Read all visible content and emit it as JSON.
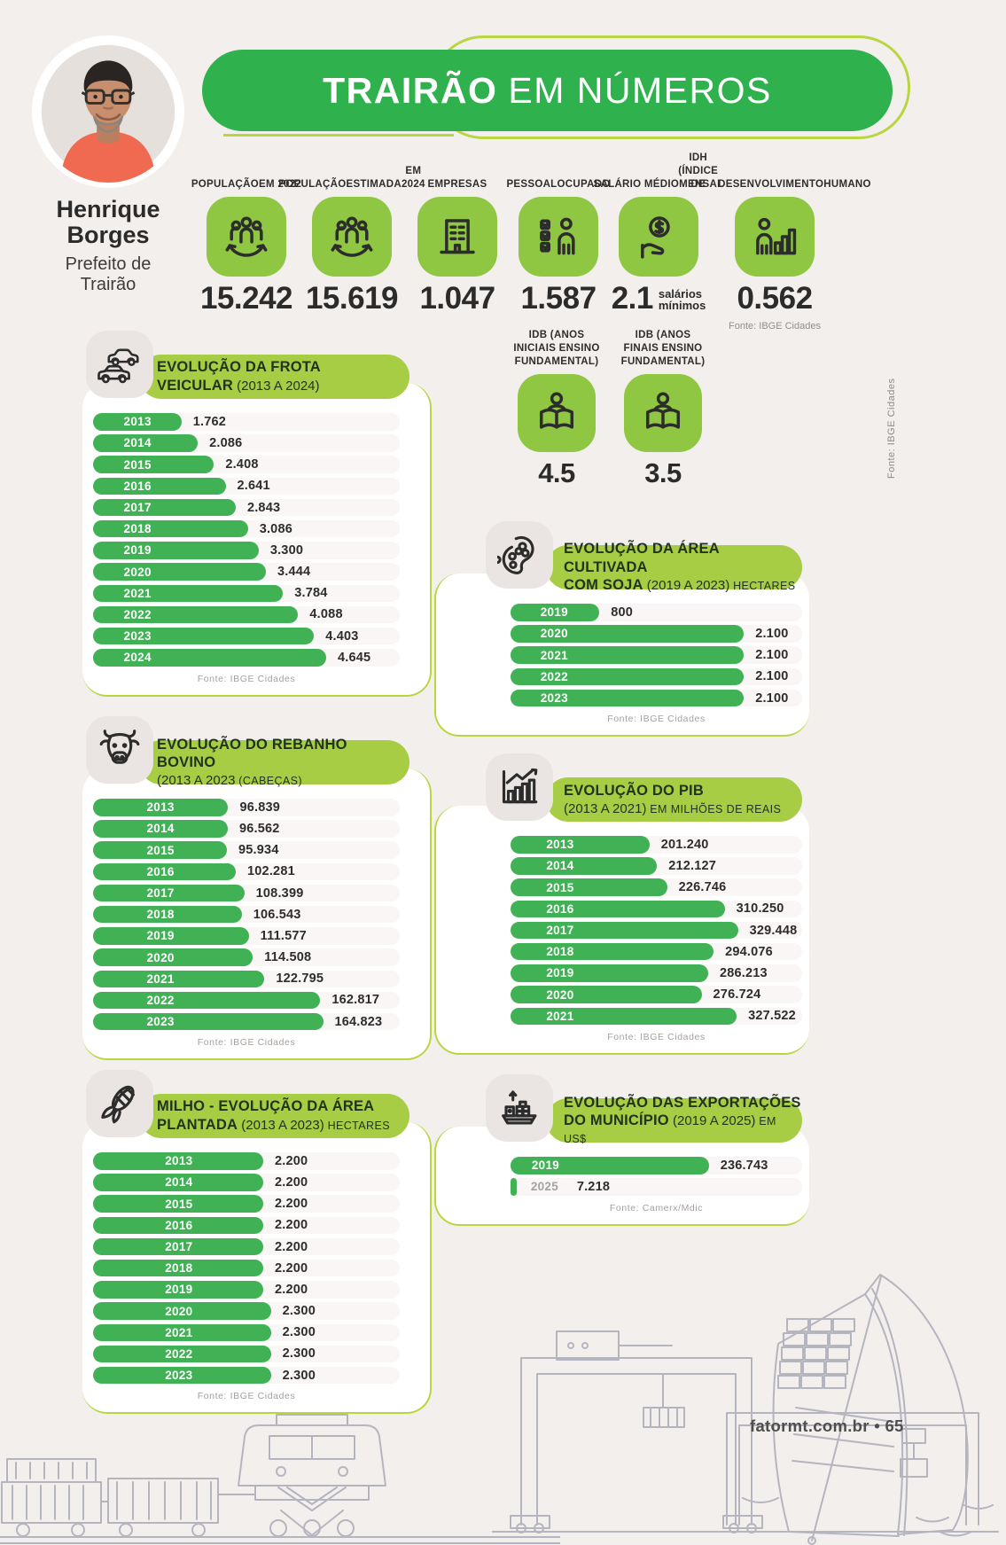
{
  "header": {
    "title_bold": "TRAIRÃO",
    "title_light": "EM NÚMEROS"
  },
  "official": {
    "name_line1": "Henrique",
    "name_line2": "Borges",
    "role_line1": "Prefeito de",
    "role_line2": "Trairão"
  },
  "stats": [
    {
      "label_lines": [
        "POPULAÇÃO",
        "EM 2022"
      ],
      "icon": "population-icon",
      "value": "15.242"
    },
    {
      "label_lines": [
        "POPULAÇÃO",
        "ESTIMADA",
        "EM 2024"
      ],
      "icon": "population-icon",
      "value": "15.619"
    },
    {
      "label_lines": [
        "EMPRESAS"
      ],
      "icon": "building-icon",
      "value": "1.047"
    },
    {
      "label_lines": [
        "PESSOAL",
        "OCUPADO"
      ],
      "icon": "worker-checklist-icon",
      "value": "1.587"
    },
    {
      "label_lines": [
        "SALÁRIO MÉDIO",
        "MENSAL"
      ],
      "icon": "salary-hand-icon",
      "value": "2.1",
      "suffix_lines": [
        "salários",
        "mínimos"
      ]
    },
    {
      "label_lines": [
        "IDH (ÍNDICE DE",
        "DESENVOLVIMENTO",
        "HUMANO"
      ],
      "icon": "idh-person-chart-icon",
      "value": "0.562",
      "fonte": "Fonte: IBGE Cidades"
    }
  ],
  "idb": [
    {
      "label_lines": [
        "IDB (ANOS",
        "INICIAIS ENSINO",
        "FUNDAMENTAL)"
      ],
      "icon": "reader-book-icon",
      "value": "4.5"
    },
    {
      "label_lines": [
        "IDB (ANOS",
        "FINAIS ENSINO",
        "FUNDAMENTAL)"
      ],
      "icon": "reader-book-icon",
      "value": "3.5"
    }
  ],
  "side_note": "Fonte: IBGE Cidades",
  "footer": {
    "site": "fatormt.com.br",
    "separator": "•",
    "page_number": "65"
  },
  "colors": {
    "banner_green": "#2fb14d",
    "bar_green": "#41b156",
    "pill_green": "#a6cd44",
    "outline_green": "#b9d642",
    "tile_green": "#8fc642",
    "tile_gray": "#eae5e2",
    "page_bg": "#f3efed",
    "text_dark": "#2d2d2d",
    "fonte_gray": "#a5a09d"
  },
  "chart_data": [
    {
      "id": "frota",
      "type": "bar",
      "orientation": "horizontal",
      "icon": "car-icon",
      "title_lines": [
        [
          [
            "b",
            "EVOLUÇÃO DA FROTA"
          ]
        ],
        [
          [
            "b",
            "VEICULAR"
          ],
          [
            "r",
            " (2013 A 2024)"
          ]
        ]
      ],
      "title": "EVOLUÇÃO DA FROTA VEICULAR (2013 A 2024)",
      "categories": [
        "2013",
        "2014",
        "2015",
        "2016",
        "2017",
        "2018",
        "2019",
        "2020",
        "2021",
        "2022",
        "2023",
        "2024"
      ],
      "values": [
        1762,
        2086,
        2408,
        2641,
        2843,
        3086,
        3300,
        3444,
        3784,
        4088,
        4403,
        4645
      ],
      "display": [
        "1.762",
        "2.086",
        "2.408",
        "2.641",
        "2.843",
        "3.086",
        "3.300",
        "3.444",
        "3.784",
        "4.088",
        "4.403",
        "4.645"
      ],
      "fonte": "Fonte: IBGE Cidades"
    },
    {
      "id": "soja",
      "type": "bar",
      "orientation": "horizontal",
      "icon": "soy-icon",
      "title_lines": [
        [
          [
            "b",
            "EVOLUÇÃO DA ÁREA CULTIVADA"
          ]
        ],
        [
          [
            "b",
            "COM SOJA"
          ],
          [
            "r",
            " (2019 A 2023)"
          ],
          [
            "s",
            " HECTARES"
          ]
        ]
      ],
      "title": "EVOLUÇÃO DA ÁREA CULTIVADA COM SOJA (2019 A 2023) HECTARES",
      "categories": [
        "2019",
        "2020",
        "2021",
        "2022",
        "2023"
      ],
      "values": [
        800,
        2100,
        2100,
        2100,
        2100
      ],
      "display": [
        "800",
        "2.100",
        "2.100",
        "2.100",
        "2.100"
      ],
      "fonte": "Fonte: IBGE Cidades"
    },
    {
      "id": "rebanho",
      "type": "bar",
      "orientation": "horizontal",
      "icon": "cow-icon",
      "title_lines": [
        [
          [
            "b",
            "EVOLUÇÃO DO REBANHO BOVINO"
          ]
        ],
        [
          [
            "r",
            "(2013 A 2023"
          ],
          [
            "s",
            " (CABEÇAS)"
          ]
        ]
      ],
      "title": "EVOLUÇÃO DO REBANHO BOVINO (2013 A 2023) CABEÇAS",
      "categories": [
        "2013",
        "2014",
        "2015",
        "2016",
        "2017",
        "2018",
        "2019",
        "2020",
        "2021",
        "2022",
        "2023"
      ],
      "values": [
        96839,
        96562,
        95934,
        102281,
        108399,
        106543,
        111577,
        114508,
        122795,
        162817,
        164823
      ],
      "display": [
        "96.839",
        "96.562",
        "95.934",
        "102.281",
        "108.399",
        "106.543",
        "111.577",
        "114.508",
        "122.795",
        "162.817",
        "164.823"
      ],
      "fonte": "Fonte: IBGE Cidades"
    },
    {
      "id": "pib",
      "type": "bar",
      "orientation": "horizontal",
      "icon": "chart-growth-icon",
      "title_lines": [
        [
          [
            "b",
            "EVOLUÇÃO DO PIB"
          ]
        ],
        [
          [
            "r",
            "(2013 A 2021)"
          ],
          [
            "s",
            " EM MILHÕES DE REAIS"
          ]
        ]
      ],
      "title": "EVOLUÇÃO DO PIB (2013 A 2021) EM MILHÕES DE REAIS",
      "categories": [
        "2013",
        "2014",
        "2015",
        "2016",
        "2017",
        "2018",
        "2019",
        "2020",
        "2021"
      ],
      "values": [
        201240,
        212127,
        226746,
        310250,
        329448,
        294076,
        286213,
        276724,
        327522
      ],
      "display": [
        "201.240",
        "212.127",
        "226.746",
        "310.250",
        "329.448",
        "294.076",
        "286.213",
        "276.724",
        "327.522"
      ],
      "fonte": "Fonte: IBGE Cidades"
    },
    {
      "id": "milho",
      "type": "bar",
      "orientation": "horizontal",
      "icon": "corn-icon",
      "title_lines": [
        [
          [
            "b",
            "MILHO - EVOLUÇÃO DA ÁREA"
          ]
        ],
        [
          [
            "b",
            "PLANTADA"
          ],
          [
            "r",
            " (2013 A 2023)"
          ],
          [
            "s",
            " HECTARES"
          ]
        ]
      ],
      "title": "MILHO - EVOLUÇÃO DA ÁREA PLANTADA (2013 A 2023) HECTARES",
      "categories": [
        "2013",
        "2014",
        "2015",
        "2016",
        "2017",
        "2018",
        "2019",
        "2020",
        "2021",
        "2022",
        "2023"
      ],
      "values": [
        2200,
        2200,
        2200,
        2200,
        2200,
        2200,
        2200,
        2300,
        2300,
        2300,
        2300
      ],
      "display": [
        "2.200",
        "2.200",
        "2.200",
        "2.200",
        "2.200",
        "2.200",
        "2.200",
        "2.300",
        "2.300",
        "2.300",
        "2.300"
      ],
      "fonte": "Fonte: IBGE Cidades"
    },
    {
      "id": "export",
      "type": "bar",
      "orientation": "horizontal",
      "icon": "ship-export-icon",
      "title_lines": [
        [
          [
            "b",
            "EVOLUÇÃO DAS EXPORTAÇÕES"
          ]
        ],
        [
          [
            "b",
            "DO MUNICÍPIO"
          ],
          [
            "r",
            " (2019 A 2025)"
          ],
          [
            "s",
            " EM US$"
          ]
        ]
      ],
      "title": "EVOLUÇÃO DAS EXPORTAÇÕES DO MUNICÍPIO (2019 A 2025) EM US$",
      "categories": [
        "2019",
        "2025"
      ],
      "values": [
        236743,
        7218
      ],
      "display": [
        "236.743",
        "7.218"
      ],
      "fonte": "Fonte: Camerx/Mdic"
    }
  ]
}
